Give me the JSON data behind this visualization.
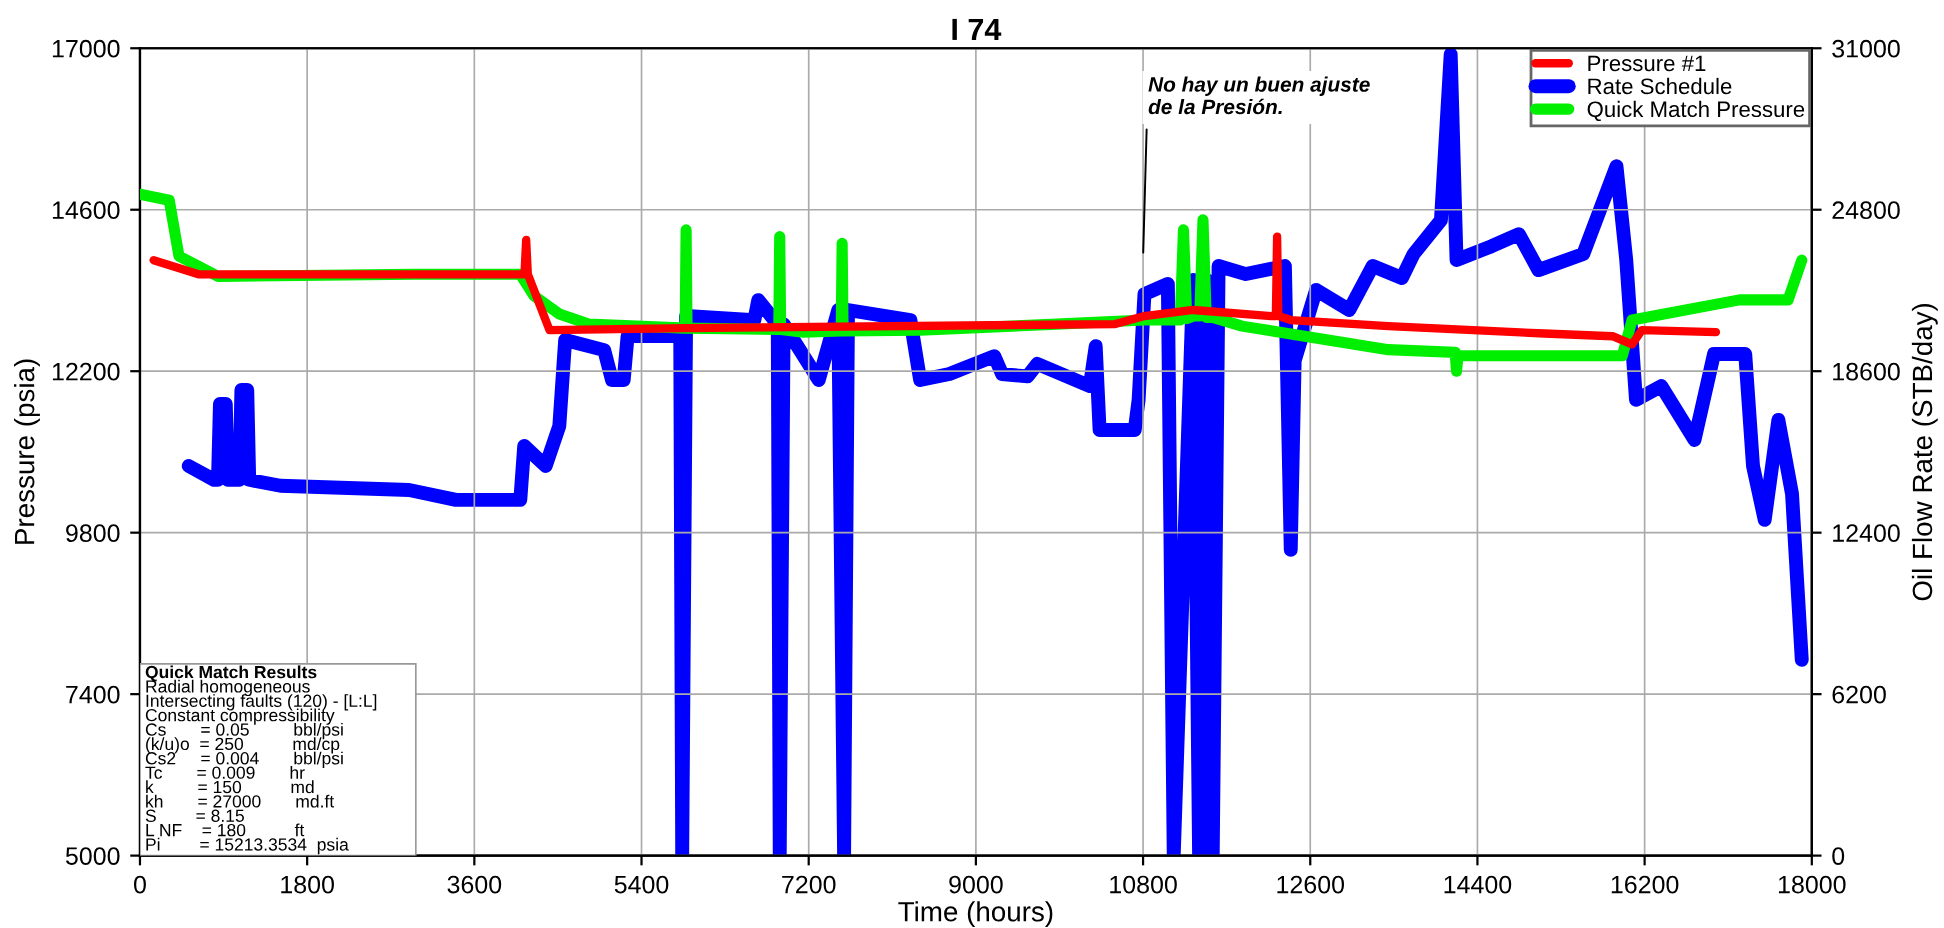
{
  "chart_data": {
    "type": "line",
    "title": "I 74",
    "xlabel": "Time (hours)",
    "ylabel": "Pressure (psia)",
    "y2label": "Oil Flow Rate (STB/day)",
    "xlim": [
      0,
      18000
    ],
    "xticks": [
      0,
      1800,
      3600,
      5400,
      7200,
      9000,
      10800,
      12600,
      14400,
      16200,
      18000
    ],
    "ylim": [
      5000,
      17000
    ],
    "yticks": [
      5000,
      7400,
      9800,
      12200,
      14600,
      17000
    ],
    "y2lim": [
      0,
      31000
    ],
    "y2ticks": [
      0,
      6200,
      12400,
      18600,
      24800,
      31000
    ],
    "grid": true,
    "legend": "top right",
    "series": [
      {
        "name": "Pressure #1",
        "color": "#ff0000",
        "x": [
          147,
          630,
          4095,
          4140,
          4158,
          4176,
          4410,
          5880,
          10500,
          10815,
          11340,
          12180,
          12230,
          12243,
          12256,
          12390,
          13440,
          15120,
          15855,
          16065,
          16170,
          16968
        ],
        "values": [
          13850,
          13640,
          13640,
          13640,
          14150,
          13640,
          12810,
          12840,
          12900,
          13020,
          13110,
          13020,
          13020,
          14200,
          13020,
          12960,
          12870,
          12760,
          12720,
          12600,
          12810,
          12780
        ]
      },
      {
        "name": "Rate Schedule",
        "color": "#0000ff",
        "axis": "y2",
        "x": [
          525,
          798,
          840,
          861,
          924,
          945,
          1071,
          1092,
          1155,
          1176,
          1512,
          2898,
          3402,
          4095,
          4137,
          4368,
          4515,
          4578,
          4998,
          5082,
          5208,
          5250,
          5817,
          5838,
          5880,
          6615,
          6657,
          6867,
          6888,
          6930,
          7308,
          7518,
          7581,
          7623,
          8295,
          8400,
          8715,
          9198,
          9282,
          9555,
          9660,
          10227,
          10290,
          10332,
          10710,
          10752,
          10815,
          11067,
          11130,
          11340,
          11403,
          11487,
          11550,
          11613,
          11907,
          12327,
          12390,
          12432,
          12663,
          13020,
          13272,
          13587,
          13713,
          14007,
          14112,
          14175,
          14553,
          14847,
          15057,
          15540,
          15897,
          16002,
          16107,
          16380,
          16737,
          16947,
          17283,
          17367,
          17493,
          17640,
          17787,
          17892
        ],
        "values": [
          14960,
          14430,
          14430,
          17340,
          17340,
          14430,
          14430,
          17880,
          17880,
          14430,
          14200,
          14040,
          13660,
          13660,
          15730,
          14960,
          16500,
          19800,
          19410,
          18260,
          18260,
          19950,
          19950,
          0,
          20720,
          20560,
          21330,
          20400,
          0,
          20400,
          18260,
          20950,
          0,
          20950,
          20560,
          18260,
          18490,
          19180,
          18490,
          18400,
          18880,
          18030,
          19560,
          16340,
          16340,
          17500,
          21560,
          21950,
          0,
          22100,
          0,
          22100,
          0,
          22640,
          22330,
          22640,
          11740,
          19000,
          21720,
          20950,
          22640,
          22180,
          23100,
          24400,
          30770,
          22870,
          23400,
          23860,
          22480,
          23100,
          26470,
          22870,
          17500,
          18030,
          15960,
          19260,
          19260,
          14960,
          12890,
          16730,
          13890,
          7520
        ]
      },
      {
        "name": "Quick Match Pressure",
        "color": "#00ee00",
        "x": [
          0,
          315,
          420,
          840,
          2940,
          4095,
          4242,
          4515,
          4830,
          5870,
          5880,
          5890,
          6878,
          6888,
          6898,
          7140,
          7550,
          7560,
          7570,
          8400,
          9870,
          10815,
          11200,
          11235,
          11270,
          11340,
          11410,
          11445,
          11480,
          11550,
          11865,
          13440,
          14160,
          14175,
          14190,
          15120,
          15960,
          16065,
          17220,
          17745,
          17892
        ],
        "values": [
          14830,
          14740,
          13910,
          13610,
          13640,
          13640,
          13320,
          13050,
          12900,
          12840,
          14300,
          12840,
          12820,
          14200,
          12820,
          12780,
          12800,
          14100,
          12800,
          12810,
          12900,
          12960,
          12960,
          14300,
          12980,
          13020,
          13020,
          14450,
          13000,
          13000,
          12870,
          12520,
          12480,
          12200,
          12430,
          12430,
          12430,
          12960,
          13260,
          13260,
          13850
        ]
      }
    ],
    "annotations": [
      "No hay un buen ajuste\nde la Presión.",
      "Quick Match Results",
      "Radial homogeneous",
      "Intersecting faults (120) - [L:L]",
      "Constant compressibility",
      "Cs       = 0.05         bbl/psi",
      "(k/u)o  = 250          md/cp",
      "Cs2     = 0.004       bbl/psi",
      "Tc       = 0.009       hr",
      "k         = 150          md",
      "kh       = 27000       md.ft",
      "S        = 8.15",
      "L NF    = 180          ft",
      "Pi        = 15213.3534  psia"
    ]
  }
}
